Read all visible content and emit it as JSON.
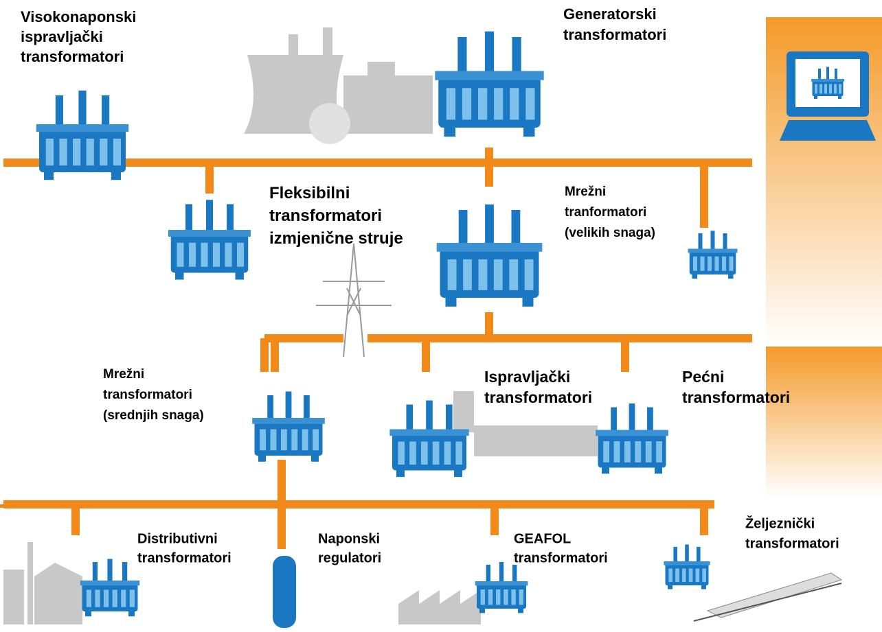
{
  "nodes": [
    {
      "label": [
        "Visokonaponski",
        "ispravljački",
        "transformatori"
      ]
    },
    {
      "label": [
        "Generatorski",
        "transformatori"
      ]
    },
    {
      "label": [
        "Fleksibilni",
        "transformatori",
        "izmjenične struje"
      ]
    },
    {
      "label": [
        "Mrežni",
        "tranformatori",
        "(velikih snaga)"
      ]
    },
    {
      "label": [
        "Mrežni",
        "transformatori",
        "(srednjih snaga)"
      ]
    },
    {
      "label": [
        "Ispravljački",
        "transformatori"
      ]
    },
    {
      "label": [
        "Pećni",
        "transformatori"
      ]
    },
    {
      "label": [
        "Distributivni",
        "transformatori"
      ]
    },
    {
      "label": [
        "Naponski",
        "regulatori"
      ]
    },
    {
      "label": [
        "GEAFOL",
        "transformatori"
      ]
    },
    {
      "label": [
        "Željeznički",
        "transformatori"
      ]
    }
  ]
}
